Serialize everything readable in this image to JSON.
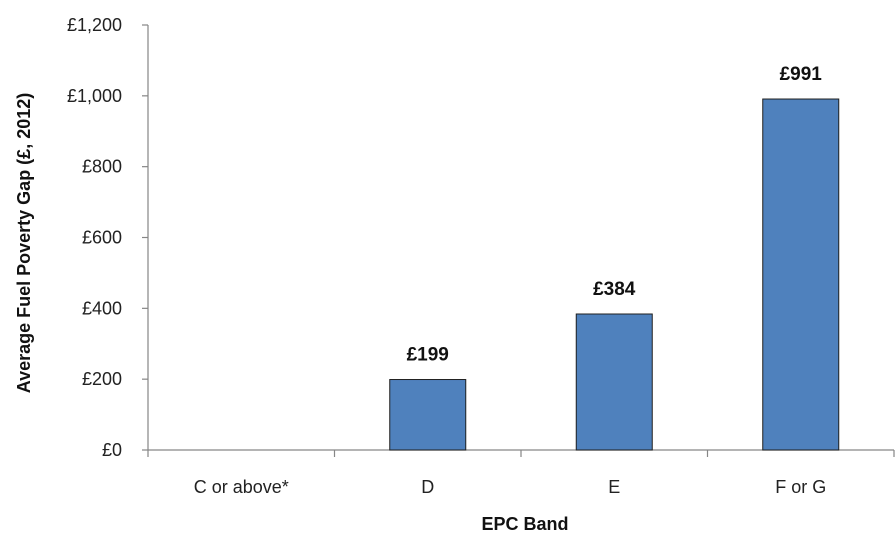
{
  "chart_data": {
    "type": "bar",
    "categories": [
      "C or above*",
      "D",
      "E",
      "F or G"
    ],
    "values": [
      null,
      199,
      384,
      991
    ],
    "data_labels": [
      "",
      "£199",
      "£384",
      "£991"
    ],
    "xlabel": "EPC Band",
    "ylabel": "Average Fuel Poverty Gap (£, 2012)",
    "ylim": [
      0,
      1200
    ],
    "yticks": [
      0,
      200,
      400,
      600,
      800,
      1000,
      1200
    ],
    "ytick_labels": [
      "£0",
      "£200",
      "£400",
      "£600",
      "£800",
      "£1,000",
      "£1,200"
    ],
    "grid": false,
    "legend": "none",
    "bar_color": "#4f81bd",
    "bar_edge_color": "#1f1f1f"
  }
}
